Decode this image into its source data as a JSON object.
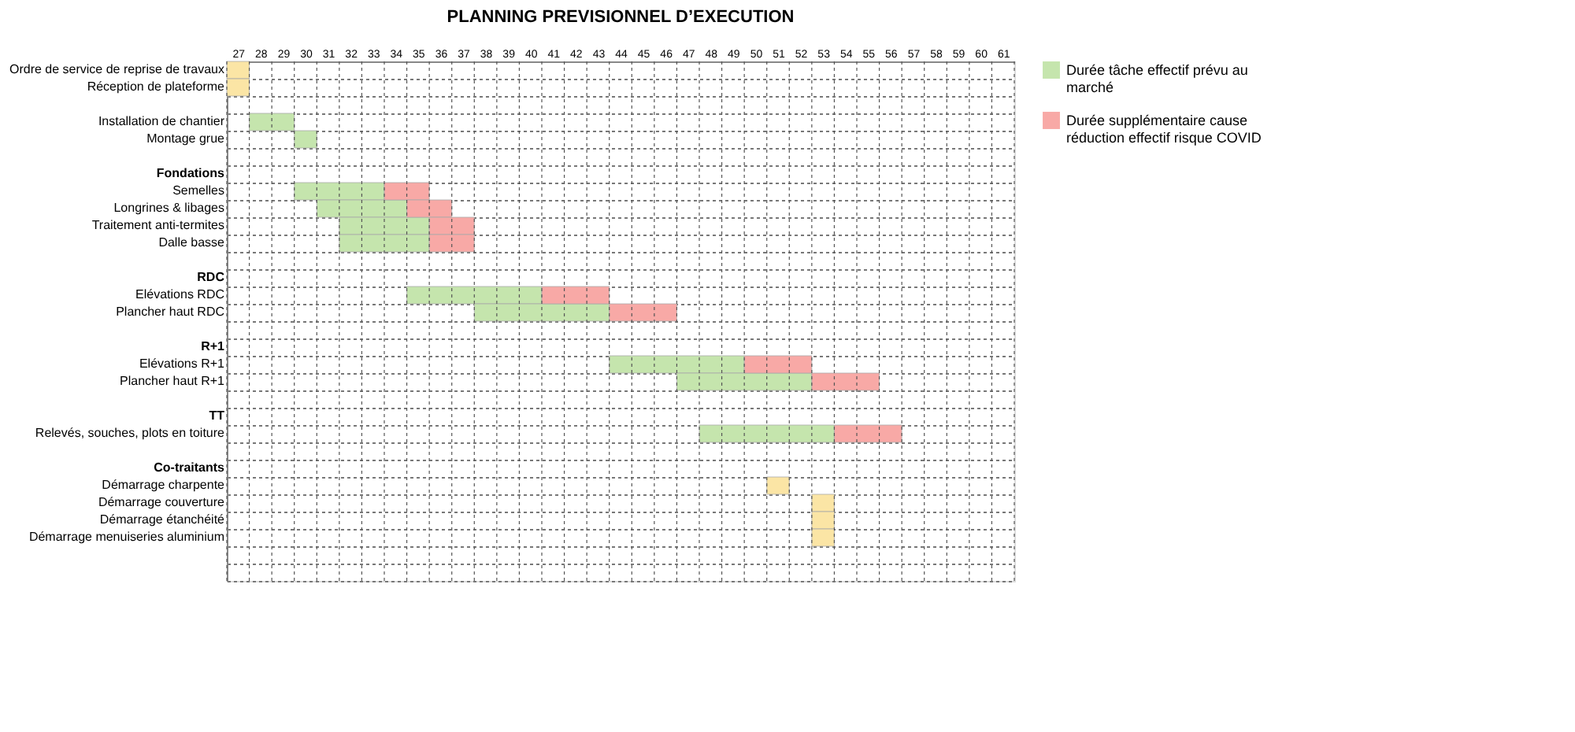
{
  "chart_data": {
    "type": "bar",
    "orientation": "horizontal",
    "title": "PLANNING PREVISIONNEL D’EXECUTION",
    "categories": [
      "Ordre de service de reprise de travaux",
      "Réception de plateforme",
      null,
      "Installation de chantier",
      "Montage grue",
      null,
      "Fondations",
      "Semelles",
      "Longrines & libages",
      "Traitement anti-termites",
      "Dalle basse",
      null,
      "RDC",
      "Elévations RDC",
      "Plancher haut RDC",
      null,
      "R+1",
      "Elévations R+1",
      "Plancher haut R+1",
      null,
      "TT",
      "Relevés, souches, plots en toiture",
      null,
      "Co-traitants",
      "Démarrage charpente",
      "Démarrage couverture",
      "Démarrage étanchéité",
      "Démarrage menuiseries aluminium",
      null,
      null
    ],
    "series": [
      {
        "name": "Durée tâche effectif prévu au marché",
        "color": "#c5e5ad",
        "base": [
          null,
          null,
          null,
          28,
          30,
          null,
          null,
          30,
          31,
          32,
          32,
          null,
          null,
          35,
          38,
          null,
          null,
          44,
          47,
          null,
          null,
          48,
          null,
          null,
          null,
          null,
          null,
          null,
          null,
          null
        ],
        "values": [
          null,
          null,
          null,
          2,
          1,
          null,
          null,
          4,
          4,
          4,
          4,
          null,
          null,
          6,
          6,
          null,
          null,
          6,
          6,
          null,
          null,
          6,
          null,
          null,
          null,
          null,
          null,
          null,
          null,
          null
        ]
      },
      {
        "name": "Durée supplémentaire cause réduction effectif risque COVID",
        "color": "#f8a9a6",
        "base": [
          null,
          null,
          null,
          null,
          null,
          null,
          null,
          34,
          35,
          36,
          36,
          null,
          null,
          41,
          44,
          null,
          null,
          50,
          53,
          null,
          null,
          54,
          null,
          null,
          null,
          null,
          null,
          null,
          null,
          null
        ],
        "values": [
          null,
          null,
          null,
          null,
          null,
          null,
          null,
          2,
          2,
          2,
          2,
          null,
          null,
          3,
          3,
          null,
          null,
          3,
          3,
          null,
          null,
          3,
          null,
          null,
          null,
          null,
          null,
          null,
          null,
          null
        ]
      },
      {
        "color": "#fbe5a5",
        "base": [
          27,
          27,
          null,
          null,
          null,
          null,
          null,
          null,
          null,
          null,
          null,
          null,
          null,
          null,
          null,
          null,
          null,
          null,
          null,
          null,
          null,
          null,
          null,
          null,
          51,
          53,
          53,
          53,
          null,
          null
        ],
        "values": [
          1,
          1,
          null,
          null,
          null,
          null,
          null,
          null,
          null,
          null,
          null,
          null,
          null,
          null,
          null,
          null,
          null,
          null,
          null,
          null,
          null,
          null,
          null,
          null,
          1,
          1,
          1,
          1,
          null,
          null
        ]
      }
    ],
    "xlim": [
      27,
      62
    ],
    "xticks": [
      {
        "value": 27.5,
        "label": "27"
      },
      {
        "value": 28.5,
        "label": "28"
      },
      {
        "value": 29.5,
        "label": "29"
      },
      {
        "value": 30.5,
        "label": "30"
      },
      {
        "value": 31.5,
        "label": "31"
      },
      {
        "value": 32.5,
        "label": "32"
      },
      {
        "value": 33.5,
        "label": "33"
      },
      {
        "value": 34.5,
        "label": "34"
      },
      {
        "value": 35.5,
        "label": "35"
      },
      {
        "value": 36.5,
        "label": "36"
      },
      {
        "value": 37.5,
        "label": "37"
      },
      {
        "value": 38.5,
        "label": "38"
      },
      {
        "value": 39.5,
        "label": "39"
      },
      {
        "value": 40.5,
        "label": "40"
      },
      {
        "value": 41.5,
        "label": "41"
      },
      {
        "value": 42.5,
        "label": "42"
      },
      {
        "value": 43.5,
        "label": "43"
      },
      {
        "value": 44.5,
        "label": "44"
      },
      {
        "value": 45.5,
        "label": "45"
      },
      {
        "value": 46.5,
        "label": "46"
      },
      {
        "value": 47.5,
        "label": "47"
      },
      {
        "value": 48.5,
        "label": "48"
      },
      {
        "value": 49.5,
        "label": "49"
      },
      {
        "value": 50.5,
        "label": "50"
      },
      {
        "value": 51.5,
        "label": "51"
      },
      {
        "value": 52.5,
        "label": "52"
      },
      {
        "value": 53.5,
        "label": "53"
      },
      {
        "value": 54.5,
        "label": "54"
      },
      {
        "value": 55.5,
        "label": "55"
      },
      {
        "value": 56.5,
        "label": "56"
      },
      {
        "value": 57.5,
        "label": "57"
      },
      {
        "value": 58.5,
        "label": "58"
      },
      {
        "value": 59.5,
        "label": "59"
      },
      {
        "value": 60.5,
        "label": "60"
      },
      {
        "value": 61.5,
        "label": "61"
      }
    ],
    "grid": true,
    "legend": "top right"
  }
}
